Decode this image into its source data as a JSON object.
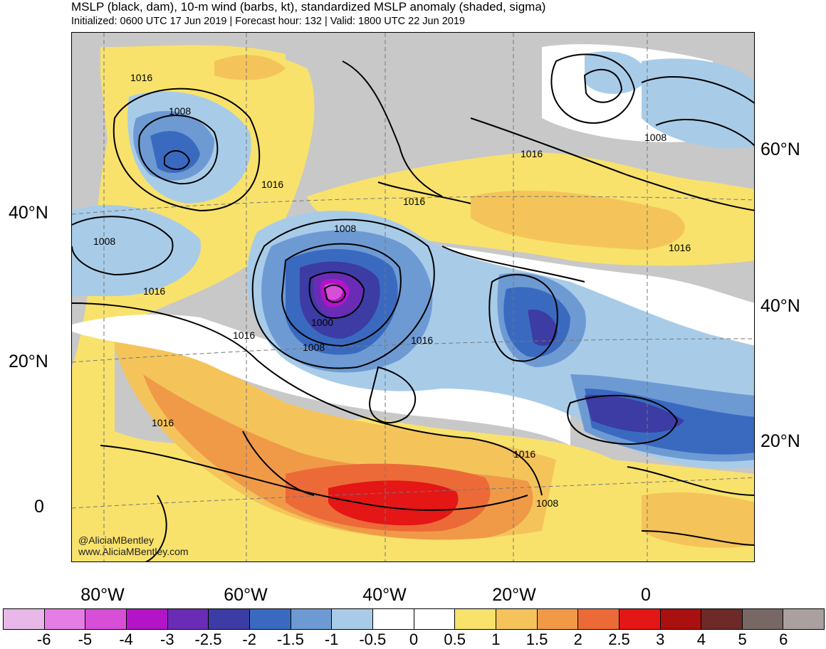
{
  "title": "MSLP (black, dam), 10-m wind (barbs, kt), standardized MSLP anomaly (shaded, sigma)",
  "subtitle": "Initialized: 0600 UTC 17 Jun 2019 | Forecast hour: 132 | Valid: 1800 UTC 22 Jun 2019",
  "lat_labels_left": [
    "40°N",
    "20°N",
    "0"
  ],
  "lat_labels_right": [
    "60°N",
    "40°N",
    "20°N"
  ],
  "lon_labels": [
    "80°W",
    "60°W",
    "40°W",
    "20°W",
    "0"
  ],
  "credits": [
    "@AliciaMBentley",
    "www.AliciaMBentley.com"
  ],
  "colorbar": {
    "colors": [
      "#e8b8e8",
      "#e47ee4",
      "#d74fd7",
      "#b314c8",
      "#6a2cb4",
      "#3c3ca4",
      "#3a6ac0",
      "#6e9ad4",
      "#a8cce8",
      "#ffffff",
      "#ffffff",
      "#f8e26c",
      "#f4c45a",
      "#f09a48",
      "#ec6a38",
      "#e41616",
      "#aa1010",
      "#6e2a28",
      "#776866",
      "#aaa0a0"
    ],
    "ticks": [
      "-6",
      "-5",
      "-4",
      "-3",
      "-2.5",
      "-2",
      "-1.5",
      "-1",
      "-0.5",
      "0",
      "0.5",
      "1",
      "1.5",
      "2",
      "2.5",
      "3",
      "4",
      "5",
      "6"
    ]
  },
  "contour_labels": [
    "1016",
    "1008",
    "1016",
    "1016",
    "1008",
    "1016",
    "1008",
    "1016",
    "1000",
    "1008",
    "1016",
    "1016",
    "1008",
    "1016",
    "1016",
    "1016",
    "1008"
  ]
}
